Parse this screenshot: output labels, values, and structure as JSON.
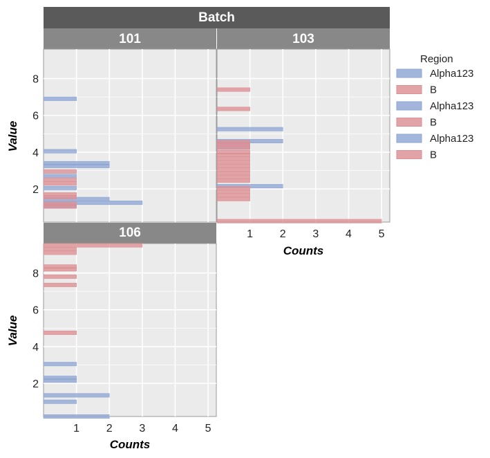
{
  "chart_data": {
    "type": "bar",
    "orientation": "horizontal",
    "facet_title": "Batch",
    "xlabel": "Counts",
    "ylabel": "Value",
    "xlim": [
      0,
      5.25
    ],
    "ylim": [
      0.2,
      9.6
    ],
    "xticks": [
      "1",
      "2",
      "3",
      "4",
      "5"
    ],
    "yticks": [
      "2",
      "4",
      "6",
      "8"
    ],
    "grid": true,
    "bin_width": 0.1,
    "legend": {
      "title": "Region",
      "placement": "right",
      "entries": [
        {
          "label": "Alpha123",
          "color": "#8ea6d4"
        },
        {
          "label": "B",
          "color": "#dc8f94"
        },
        {
          "label": "Alpha123",
          "color": "#8ea6d4"
        },
        {
          "label": "B",
          "color": "#dc8f94"
        },
        {
          "label": "Alpha123",
          "color": "#8ea6d4"
        },
        {
          "label": "B",
          "color": "#dc8f94"
        }
      ]
    },
    "colors": {
      "Alpha123": "#8ea6d4",
      "B": "#dc8f94"
    },
    "panels": [
      {
        "label": "101",
        "series": [
          {
            "name": "Alpha123",
            "bars": [
              [
                6.9,
                1
              ],
              [
                4.05,
                1
              ],
              [
                3.4,
                2
              ],
              [
                3.25,
                2
              ],
              [
                2.7,
                1
              ],
              [
                2.05,
                1
              ],
              [
                1.45,
                2
              ],
              [
                1.25,
                3
              ],
              [
                1.05,
                1
              ]
            ]
          },
          {
            "name": "B",
            "bars": [
              [
                2.95,
                1
              ],
              [
                2.5,
                1
              ],
              [
                2.3,
                1
              ],
              [
                1.7,
                1
              ],
              [
                1.55,
                1
              ],
              [
                1.2,
                1
              ],
              [
                1.05,
                1
              ]
            ]
          }
        ]
      },
      {
        "label": "103",
        "series": [
          {
            "name": "Alpha123",
            "bars": [
              [
                5.25,
                2
              ],
              [
                4.6,
                2
              ],
              [
                4.45,
                1
              ],
              [
                4.25,
                1
              ],
              [
                2.15,
                2
              ]
            ]
          },
          {
            "name": "B",
            "bars": [
              [
                7.4,
                1
              ],
              [
                6.35,
                1
              ],
              [
                4.55,
                1
              ],
              [
                4.4,
                1
              ],
              [
                4.25,
                1
              ],
              [
                4.0,
                1
              ],
              [
                3.85,
                1
              ],
              [
                3.65,
                1
              ],
              [
                3.45,
                1
              ],
              [
                3.25,
                1
              ],
              [
                3.05,
                1
              ],
              [
                2.85,
                1
              ],
              [
                2.65,
                1
              ],
              [
                2.45,
                1
              ],
              [
                2.05,
                1
              ],
              [
                1.85,
                1
              ],
              [
                1.65,
                1
              ],
              [
                1.45,
                1
              ],
              [
                0.25,
                5
              ]
            ]
          }
        ]
      },
      {
        "label": "106",
        "series": [
          {
            "name": "Alpha123",
            "bars": [
              [
                3.05,
                1
              ],
              [
                2.3,
                1
              ],
              [
                2.15,
                1
              ],
              [
                1.35,
                2
              ],
              [
                1.0,
                1
              ],
              [
                0.2,
                2
              ]
            ]
          },
          {
            "name": "B",
            "bars": [
              [
                9.5,
                3
              ],
              [
                9.3,
                1
              ],
              [
                9.1,
                1
              ],
              [
                8.35,
                1
              ],
              [
                8.2,
                1
              ],
              [
                7.8,
                1
              ],
              [
                7.35,
                1
              ],
              [
                4.75,
                1
              ]
            ]
          }
        ]
      }
    ]
  }
}
